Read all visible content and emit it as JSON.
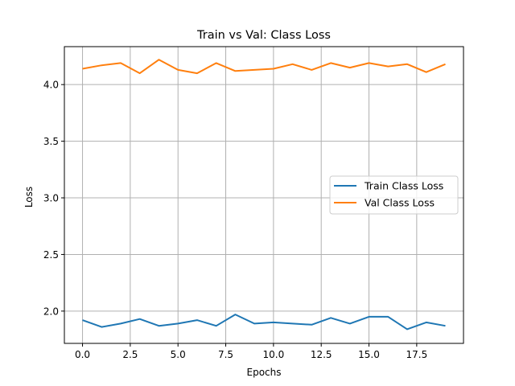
{
  "chart_data": {
    "type": "line",
    "title": "Train vs Val: Class Loss",
    "xlabel": "Epochs",
    "ylabel": "Loss",
    "xlim": [
      -0.95,
      19.95
    ],
    "ylim": [
      1.715,
      4.335
    ],
    "xticks": [
      0.0,
      2.5,
      5.0,
      7.5,
      10.0,
      12.5,
      15.0,
      17.5
    ],
    "xtick_labels": [
      "0.0",
      "2.5",
      "5.0",
      "7.5",
      "10.0",
      "12.5",
      "15.0",
      "17.5"
    ],
    "yticks": [
      2.0,
      2.5,
      3.0,
      3.5,
      4.0
    ],
    "ytick_labels": [
      "2.0",
      "2.5",
      "3.0",
      "3.5",
      "4.0"
    ],
    "grid": true,
    "legend_position": "center-right",
    "x": [
      0,
      1,
      2,
      3,
      4,
      5,
      6,
      7,
      8,
      9,
      10,
      11,
      12,
      13,
      14,
      15,
      16,
      17,
      18,
      19
    ],
    "series": [
      {
        "name": "Train Class Loss",
        "color": "#1f77b4",
        "values": [
          1.92,
          1.86,
          1.89,
          1.93,
          1.87,
          1.89,
          1.92,
          1.87,
          1.97,
          1.89,
          1.9,
          1.89,
          1.88,
          1.94,
          1.89,
          1.95,
          1.95,
          1.84,
          1.9,
          1.87
        ]
      },
      {
        "name": "Val Class Loss",
        "color": "#ff7f0e",
        "values": [
          4.14,
          4.17,
          4.19,
          4.1,
          4.22,
          4.13,
          4.1,
          4.19,
          4.12,
          4.13,
          4.14,
          4.18,
          4.13,
          4.19,
          4.15,
          4.19,
          4.16,
          4.18,
          4.11,
          4.18
        ]
      }
    ]
  }
}
